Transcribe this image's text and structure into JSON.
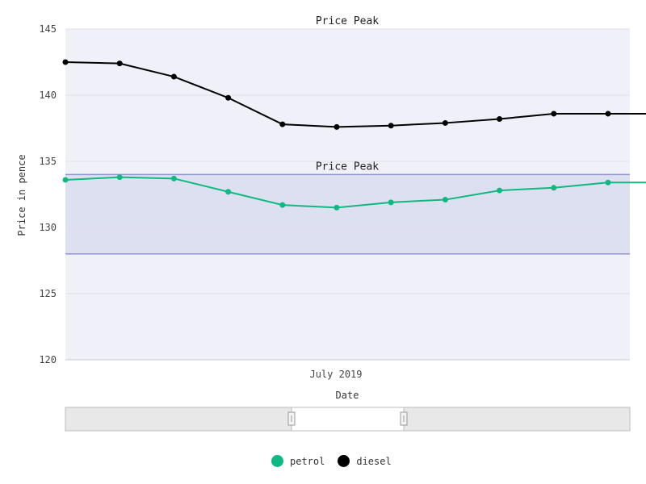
{
  "chart_data": {
    "type": "line",
    "ylabel": "Price in pence",
    "xlabel": "Date",
    "x_tick_labels": [
      "July 2019"
    ],
    "ylim": [
      120,
      145
    ],
    "y_ticks": [
      120,
      125,
      130,
      135,
      140,
      145
    ],
    "grid": true,
    "legend_position": "bottom",
    "series": [
      {
        "name": "petrol",
        "color": "#10b981",
        "values": [
          133.6,
          133.8,
          133.7,
          132.7,
          131.7,
          131.5,
          131.9,
          132.1,
          132.8,
          133.0,
          133.4,
          133.4
        ]
      },
      {
        "name": "diesel",
        "color": "#000000",
        "values": [
          142.5,
          142.4,
          141.4,
          139.8,
          137.8,
          137.6,
          137.7,
          137.9,
          138.2,
          138.6,
          138.6,
          138.6
        ]
      }
    ],
    "bands": [
      {
        "label": "Price Peak",
        "from": 145,
        "to": 145
      },
      {
        "label": "Price Peak",
        "from": 128,
        "to": 134
      }
    ]
  },
  "colors": {
    "plot_background": "#eff0f8",
    "band_fill": "#dde0f0",
    "band_line": "#8f94d3",
    "gridline": "#e0e1ea"
  }
}
